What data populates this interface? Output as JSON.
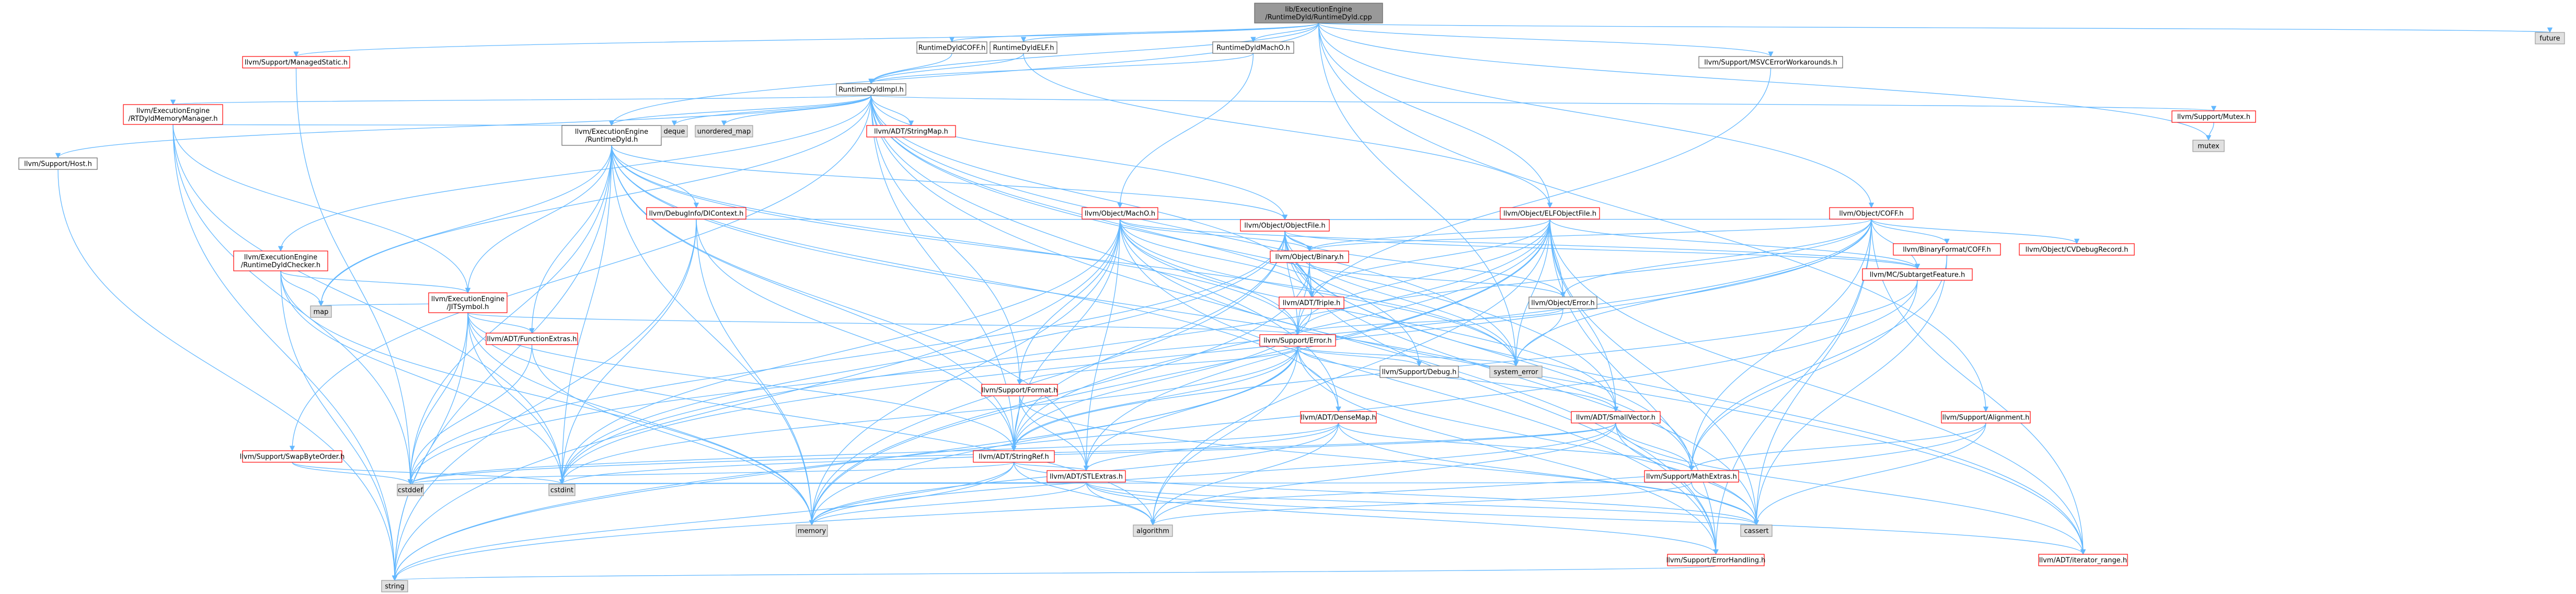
{
  "root": {
    "lines": [
      "lib/ExecutionEngine",
      "/RuntimeDyld/RuntimeDyld.cpp"
    ]
  },
  "nodes": [
    {
      "id": "dyld",
      "lines": [
        "llvm/ExecutionEngine",
        "/RuntimeDyld.h"
      ],
      "style": "doc"
    },
    {
      "id": "coff",
      "lines": [
        "RuntimeDyldCOFF.h"
      ],
      "style": "doc"
    },
    {
      "id": "elf",
      "lines": [
        "RuntimeDyldELF.h"
      ],
      "style": "doc"
    },
    {
      "id": "macho",
      "lines": [
        "RuntimeDyldMachO.h"
      ],
      "style": "doc"
    },
    {
      "id": "impl",
      "lines": [
        "RuntimeDyldImpl.h"
      ],
      "style": "doc"
    },
    {
      "id": "managedstatic",
      "lines": [
        "llvm/Support/ManagedStatic.h"
      ],
      "style": "red"
    },
    {
      "id": "msvcerr",
      "lines": [
        "llvm/Support/MSVCErrorWorkarounds.h"
      ],
      "style": "doc"
    },
    {
      "id": "future",
      "lines": [
        "future"
      ],
      "style": "std"
    },
    {
      "id": "rtdyldmm",
      "lines": [
        "llvm/ExecutionEngine",
        "/RTDyldMemoryManager.h"
      ],
      "style": "red"
    },
    {
      "id": "host",
      "lines": [
        "llvm/Support/Host.h"
      ],
      "style": "doc"
    },
    {
      "id": "deque",
      "lines": [
        "deque"
      ],
      "style": "std"
    },
    {
      "id": "umap",
      "lines": [
        "unordered_map"
      ],
      "style": "std"
    },
    {
      "id": "stringmap",
      "lines": [
        "llvm/ADT/StringMap.h"
      ],
      "style": "red"
    },
    {
      "id": "mutex_h",
      "lines": [
        "llvm/Support/Mutex.h"
      ],
      "style": "red"
    },
    {
      "id": "mutex",
      "lines": [
        "mutex"
      ],
      "style": "std"
    },
    {
      "id": "objmacho",
      "lines": [
        "llvm/Object/MachO.h"
      ],
      "style": "red"
    },
    {
      "id": "objelf",
      "lines": [
        "llvm/Object/ELFObjectFile.h"
      ],
      "style": "red"
    },
    {
      "id": "objcoff",
      "lines": [
        "llvm/Object/COFF.h"
      ],
      "style": "red"
    },
    {
      "id": "dictx",
      "lines": [
        "llvm/DebugInfo/DIContext.h"
      ],
      "style": "red"
    },
    {
      "id": "objfile",
      "lines": [
        "llvm/Object/ObjectFile.h"
      ],
      "style": "red"
    },
    {
      "id": "bincoff",
      "lines": [
        "llvm/BinaryFormat/COFF.h"
      ],
      "style": "red"
    },
    {
      "id": "cvdebug",
      "lines": [
        "llvm/Object/CVDebugRecord.h"
      ],
      "style": "red"
    },
    {
      "id": "checker",
      "lines": [
        "llvm/ExecutionEngine",
        "/RuntimeDyldChecker.h"
      ],
      "style": "red"
    },
    {
      "id": "binary",
      "lines": [
        "llvm/Object/Binary.h"
      ],
      "style": "red"
    },
    {
      "id": "subtarget",
      "lines": [
        "llvm/MC/SubtargetFeature.h"
      ],
      "style": "red"
    },
    {
      "id": "jitsym",
      "lines": [
        "llvm/ExecutionEngine",
        "/JITSymbol.h"
      ],
      "style": "red"
    },
    {
      "id": "triple",
      "lines": [
        "llvm/ADT/Triple.h"
      ],
      "style": "red"
    },
    {
      "id": "objerror",
      "lines": [
        "llvm/Object/Error.h"
      ],
      "style": "doc"
    },
    {
      "id": "map",
      "lines": [
        "map"
      ],
      "style": "std"
    },
    {
      "id": "funcextras",
      "lines": [
        "llvm/ADT/FunctionExtras.h"
      ],
      "style": "red"
    },
    {
      "id": "error",
      "lines": [
        "llvm/Support/Error.h"
      ],
      "style": "red"
    },
    {
      "id": "debug",
      "lines": [
        "llvm/Support/Debug.h"
      ],
      "style": "doc"
    },
    {
      "id": "syserr",
      "lines": [
        "system_error"
      ],
      "style": "std"
    },
    {
      "id": "format",
      "lines": [
        "llvm/Support/Format.h"
      ],
      "style": "red"
    },
    {
      "id": "densemap",
      "lines": [
        "llvm/ADT/DenseMap.h"
      ],
      "style": "red"
    },
    {
      "id": "smallvec",
      "lines": [
        "llvm/ADT/SmallVector.h"
      ],
      "style": "red"
    },
    {
      "id": "alignment",
      "lines": [
        "llvm/Support/Alignment.h"
      ],
      "style": "red"
    },
    {
      "id": "swapbyte",
      "lines": [
        "llvm/Support/SwapByteOrder.h"
      ],
      "style": "red"
    },
    {
      "id": "stringref",
      "lines": [
        "llvm/ADT/StringRef.h"
      ],
      "style": "red"
    },
    {
      "id": "stlextras",
      "lines": [
        "llvm/ADT/STLExtras.h"
      ],
      "style": "red"
    },
    {
      "id": "mathextras",
      "lines": [
        "llvm/Support/MathExtras.h"
      ],
      "style": "red"
    },
    {
      "id": "cstddef",
      "lines": [
        "cstddef"
      ],
      "style": "std"
    },
    {
      "id": "cstdint",
      "lines": [
        "cstdint"
      ],
      "style": "std"
    },
    {
      "id": "memory",
      "lines": [
        "memory"
      ],
      "style": "std"
    },
    {
      "id": "algorithm",
      "lines": [
        "algorithm"
      ],
      "style": "std"
    },
    {
      "id": "cassert",
      "lines": [
        "cassert"
      ],
      "style": "std"
    },
    {
      "id": "errhandling",
      "lines": [
        "llvm/Support/ErrorHandling.h"
      ],
      "style": "red"
    },
    {
      "id": "iterrange",
      "lines": [
        "llvm/ADT/iterator_range.h"
      ],
      "style": "red"
    },
    {
      "id": "string",
      "lines": [
        "string"
      ],
      "style": "std"
    }
  ],
  "edges": [
    [
      "root",
      "dyld"
    ],
    [
      "root",
      "coff"
    ],
    [
      "root",
      "elf"
    ],
    [
      "root",
      "macho"
    ],
    [
      "root",
      "impl"
    ],
    [
      "root",
      "managedstatic"
    ],
    [
      "root",
      "msvcerr"
    ],
    [
      "root",
      "future"
    ],
    [
      "root",
      "mutex"
    ],
    [
      "root",
      "objcoff"
    ],
    [
      "root",
      "objelf"
    ],
    [
      "root",
      "alignment"
    ],
    [
      "root",
      "syserr"
    ],
    [
      "coff",
      "impl"
    ],
    [
      "elf",
      "impl"
    ],
    [
      "elf",
      "objelf"
    ],
    [
      "macho",
      "impl"
    ],
    [
      "macho",
      "objmacho"
    ],
    [
      "msvcerr",
      "error"
    ],
    [
      "managedstatic",
      "cstddef"
    ],
    [
      "impl",
      "rtdyldmm"
    ],
    [
      "impl",
      "host"
    ],
    [
      "impl",
      "deque"
    ],
    [
      "impl",
      "umap"
    ],
    [
      "impl",
      "stringmap"
    ],
    [
      "impl",
      "mutex_h"
    ],
    [
      "impl",
      "dyld"
    ],
    [
      "impl",
      "checker"
    ],
    [
      "impl",
      "objfile"
    ],
    [
      "impl",
      "triple"
    ],
    [
      "impl",
      "format"
    ],
    [
      "impl",
      "smallvec"
    ],
    [
      "impl",
      "swapbyte"
    ],
    [
      "impl",
      "map"
    ],
    [
      "impl",
      "syserr"
    ],
    [
      "impl",
      "errhandling"
    ],
    [
      "impl",
      "stringref"
    ],
    [
      "impl",
      "debug"
    ],
    [
      "impl",
      "densemap"
    ],
    [
      "mutex_h",
      "mutex"
    ],
    [
      "host",
      "string"
    ],
    [
      "rtdyldmm",
      "dyld"
    ],
    [
      "rtdyldmm",
      "jitsym"
    ],
    [
      "rtdyldmm",
      "cstddef"
    ],
    [
      "rtdyldmm",
      "cstdint"
    ],
    [
      "rtdyldmm",
      "string"
    ],
    [
      "dyld",
      "dictx"
    ],
    [
      "dyld",
      "jitsym"
    ],
    [
      "dyld",
      "objfile"
    ],
    [
      "dyld",
      "funcextras"
    ],
    [
      "dyld",
      "error"
    ],
    [
      "dyld",
      "stringref"
    ],
    [
      "dyld",
      "stlextras"
    ],
    [
      "dyld",
      "densemap"
    ],
    [
      "dyld",
      "map"
    ],
    [
      "dyld",
      "memory"
    ],
    [
      "dyld",
      "string"
    ],
    [
      "dyld",
      "cstdint"
    ],
    [
      "dyld",
      "cstddef"
    ],
    [
      "dyld",
      "syserr"
    ],
    [
      "dyld",
      "mathextras"
    ],
    [
      "dictx",
      "objfile"
    ],
    [
      "dictx",
      "memory"
    ],
    [
      "dictx",
      "cstdint"
    ],
    [
      "dictx",
      "string"
    ],
    [
      "dictx",
      "stringref"
    ],
    [
      "checker",
      "jitsym"
    ],
    [
      "checker",
      "memory"
    ],
    [
      "checker",
      "string"
    ],
    [
      "checker",
      "cstdint"
    ],
    [
      "checker",
      "map"
    ],
    [
      "jitsym",
      "error"
    ],
    [
      "jitsym",
      "funcextras"
    ],
    [
      "jitsym",
      "stringref"
    ],
    [
      "jitsym",
      "map"
    ],
    [
      "jitsym",
      "cstddef"
    ],
    [
      "jitsym",
      "cstdint"
    ],
    [
      "jitsym",
      "string"
    ],
    [
      "jitsym",
      "memory"
    ],
    [
      "jitsym",
      "algorithm"
    ],
    [
      "funcextras",
      "memory"
    ],
    [
      "funcextras",
      "cstddef"
    ],
    [
      "objmacho",
      "objfile"
    ],
    [
      "objmacho",
      "binary"
    ],
    [
      "objmacho",
      "error"
    ],
    [
      "objmacho",
      "triple"
    ],
    [
      "objmacho",
      "smallvec"
    ],
    [
      "objmacho",
      "stringref"
    ],
    [
      "objmacho",
      "iterrange"
    ],
    [
      "objmacho",
      "format"
    ],
    [
      "objmacho",
      "subtarget"
    ],
    [
      "objmacho",
      "cstdint"
    ],
    [
      "objmacho",
      "memory"
    ],
    [
      "objmacho",
      "string"
    ],
    [
      "objmacho",
      "syserr"
    ],
    [
      "objmacho",
      "stlextras"
    ],
    [
      "objmacho",
      "errhandling"
    ],
    [
      "objelf",
      "objfile"
    ],
    [
      "objelf",
      "binary"
    ],
    [
      "objelf",
      "error"
    ],
    [
      "objelf",
      "triple"
    ],
    [
      "objelf",
      "smallvec"
    ],
    [
      "objelf",
      "stringref"
    ],
    [
      "objelf",
      "iterrange"
    ],
    [
      "objelf",
      "subtarget"
    ],
    [
      "objelf",
      "objerror"
    ],
    [
      "objelf",
      "cassert"
    ],
    [
      "objelf",
      "cstdint"
    ],
    [
      "objelf",
      "syserr"
    ],
    [
      "objelf",
      "stlextras"
    ],
    [
      "objelf",
      "errhandling"
    ],
    [
      "objelf",
      "memory"
    ],
    [
      "objelf",
      "algorithm"
    ],
    [
      "objcoff",
      "objfile"
    ],
    [
      "objcoff",
      "binary"
    ],
    [
      "objcoff",
      "error"
    ],
    [
      "objcoff",
      "bincoff"
    ],
    [
      "objcoff",
      "cvdebug"
    ],
    [
      "objcoff",
      "subtarget"
    ],
    [
      "objcoff",
      "objerror"
    ],
    [
      "objcoff",
      "iterrange"
    ],
    [
      "objcoff",
      "cassert"
    ],
    [
      "objcoff",
      "cstddef"
    ],
    [
      "objcoff",
      "cstdint"
    ],
    [
      "objcoff",
      "syserr"
    ],
    [
      "objcoff",
      "errhandling"
    ],
    [
      "objcoff",
      "mathextras"
    ],
    [
      "bincoff",
      "cassert"
    ],
    [
      "bincoff",
      "mathextras"
    ],
    [
      "objfile",
      "binary"
    ],
    [
      "objfile",
      "error"
    ],
    [
      "objfile",
      "triple"
    ],
    [
      "objfile",
      "objerror"
    ],
    [
      "objfile",
      "subtarget"
    ],
    [
      "objfile",
      "iterrange"
    ],
    [
      "objfile",
      "stringref"
    ],
    [
      "objfile",
      "cassert"
    ],
    [
      "objfile",
      "cstdint"
    ],
    [
      "objfile",
      "memory"
    ],
    [
      "objfile",
      "syserr"
    ],
    [
      "objfile",
      "mathextras"
    ],
    [
      "objfile",
      "errhandling"
    ],
    [
      "objfile",
      "cstddef"
    ],
    [
      "binary",
      "error"
    ],
    [
      "binary",
      "triple"
    ],
    [
      "binary",
      "objerror"
    ],
    [
      "binary",
      "memory"
    ],
    [
      "binary",
      "utility"
    ],
    [
      "subtarget",
      "stringref"
    ],
    [
      "subtarget",
      "mathextras"
    ],
    [
      "subtarget",
      "string"
    ],
    [
      "objerror",
      "error"
    ],
    [
      "objerror",
      "syserr"
    ],
    [
      "triple",
      "stringref"
    ],
    [
      "error",
      "format"
    ],
    [
      "error",
      "debug"
    ],
    [
      "error",
      "stlextras"
    ],
    [
      "error",
      "smallvec"
    ],
    [
      "error",
      "stringref"
    ],
    [
      "error",
      "errhandling"
    ],
    [
      "error",
      "cassert"
    ],
    [
      "error",
      "cstdint"
    ],
    [
      "error",
      "memory"
    ],
    [
      "error",
      "string"
    ],
    [
      "error",
      "syserr"
    ],
    [
      "error",
      "algorithm"
    ],
    [
      "error",
      "abi"
    ],
    [
      "format",
      "stringref"
    ],
    [
      "format",
      "stlextras"
    ],
    [
      "format",
      "cassert"
    ],
    [
      "format",
      "cstdio"
    ],
    [
      "densemap",
      "stlextras"
    ],
    [
      "densemap",
      "mathextras"
    ],
    [
      "densemap",
      "algorithm"
    ],
    [
      "densemap",
      "cassert"
    ],
    [
      "densemap",
      "cstddef"
    ],
    [
      "densemap",
      "memory"
    ],
    [
      "smallvec",
      "mathextras"
    ],
    [
      "smallvec",
      "iterrange"
    ],
    [
      "smallvec",
      "algorithm"
    ],
    [
      "smallvec",
      "cassert"
    ],
    [
      "smallvec",
      "cstddef"
    ],
    [
      "smallvec",
      "memory"
    ],
    [
      "smallvec",
      "cstdint"
    ],
    [
      "alignment",
      "mathextras"
    ],
    [
      "alignment",
      "cassert"
    ],
    [
      "alignment",
      "string"
    ],
    [
      "swapbyte",
      "cstddef"
    ],
    [
      "swapbyte",
      "cstdint"
    ],
    [
      "stringref",
      "stlextras"
    ],
    [
      "stringref",
      "cstddef"
    ],
    [
      "stringref",
      "string"
    ],
    [
      "stringref",
      "algorithm"
    ],
    [
      "stringref",
      "cassert"
    ],
    [
      "stringref",
      "memory"
    ],
    [
      "stlextras",
      "iterrange"
    ],
    [
      "stlextras",
      "errhandling"
    ],
    [
      "stlextras",
      "algorithm"
    ],
    [
      "stlextras",
      "cassert"
    ],
    [
      "stlextras",
      "cstddef"
    ],
    [
      "stlextras",
      "cstdint"
    ],
    [
      "stlextras",
      "memory"
    ],
    [
      "mathextras",
      "cassert"
    ],
    [
      "mathextras",
      "algorithm"
    ],
    [
      "mathextras",
      "cstdint"
    ],
    [
      "errhandling",
      "string"
    ]
  ]
}
